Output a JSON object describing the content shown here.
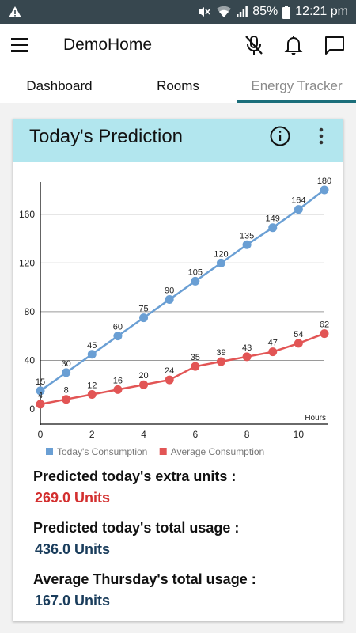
{
  "status_bar": {
    "battery": "85%",
    "time": "12:21 pm",
    "icons": [
      "warning-icon",
      "mute-icon",
      "wifi-icon",
      "signal-icon",
      "battery-icon"
    ]
  },
  "app_bar": {
    "title": "DemoHome",
    "icons": [
      "menu-icon",
      "mic-off-icon",
      "bell-icon",
      "chat-icon"
    ]
  },
  "tabs": [
    {
      "label": "Dashboard",
      "active": false
    },
    {
      "label": "Rooms",
      "active": false
    },
    {
      "label": "Energy Tracker",
      "active": true
    }
  ],
  "card": {
    "title": "Today's Prediction",
    "header_color": "#b2e6ee",
    "icons": [
      "info-icon",
      "more-vert-icon"
    ]
  },
  "chart_data": {
    "type": "line",
    "x": [
      0,
      1,
      2,
      3,
      4,
      5,
      6,
      7,
      8,
      9,
      10,
      11
    ],
    "xlabel": "Hours",
    "ylabel": "",
    "xticks": [
      0,
      2,
      4,
      6,
      8,
      10
    ],
    "yticks": [
      0,
      40,
      80,
      120,
      160
    ],
    "xlim": [
      0,
      11
    ],
    "ylim": [
      0,
      180
    ],
    "grid": "horizontal",
    "legend": "bottom",
    "series": [
      {
        "name": "Today's Consumption",
        "color": "#6a9fd4",
        "values": [
          15,
          30,
          45,
          60,
          75,
          90,
          105,
          120,
          135,
          149,
          164,
          180
        ]
      },
      {
        "name": "Average Consumption",
        "color": "#e25555",
        "values": [
          4,
          8,
          12,
          16,
          20,
          24,
          35,
          39,
          43,
          47,
          54,
          62
        ]
      }
    ]
  },
  "stats": [
    {
      "label": "Predicted today's extra units :",
      "value": "269.0 Units",
      "color": "#d32f2f"
    },
    {
      "label": "Predicted today's total usage :",
      "value": "436.0 Units",
      "color": "#1a3d5c"
    },
    {
      "label": "Average Thursday's total usage :",
      "value": "167.0 Units",
      "color": "#1a3d5c"
    }
  ]
}
